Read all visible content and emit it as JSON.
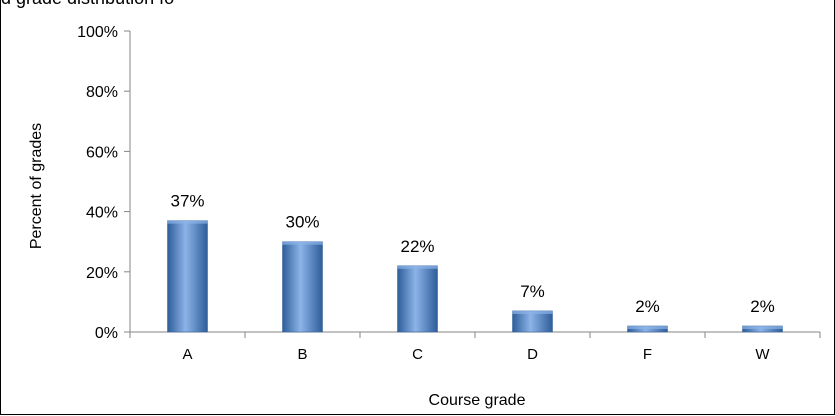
{
  "header": {
    "cut_text": "d grade distribution fo"
  },
  "chart_data": {
    "type": "bar",
    "title": "",
    "xlabel": "Course grade",
    "ylabel": "Percent of grades",
    "categories": [
      "A",
      "B",
      "C",
      "D",
      "F",
      "W"
    ],
    "values": [
      37,
      30,
      22,
      7,
      2,
      2
    ],
    "data_labels": [
      "37%",
      "30%",
      "22%",
      "7%",
      "2%",
      "2%"
    ],
    "yticks": [
      "0%",
      "20%",
      "40%",
      "60%",
      "80%",
      "100%"
    ],
    "ylim": [
      0,
      100
    ],
    "grid": false,
    "legend": "none",
    "bar_color": "#4f81bd",
    "bar_color_light": "#8cb4e8",
    "bar_color_dark": "#2e5d99"
  }
}
